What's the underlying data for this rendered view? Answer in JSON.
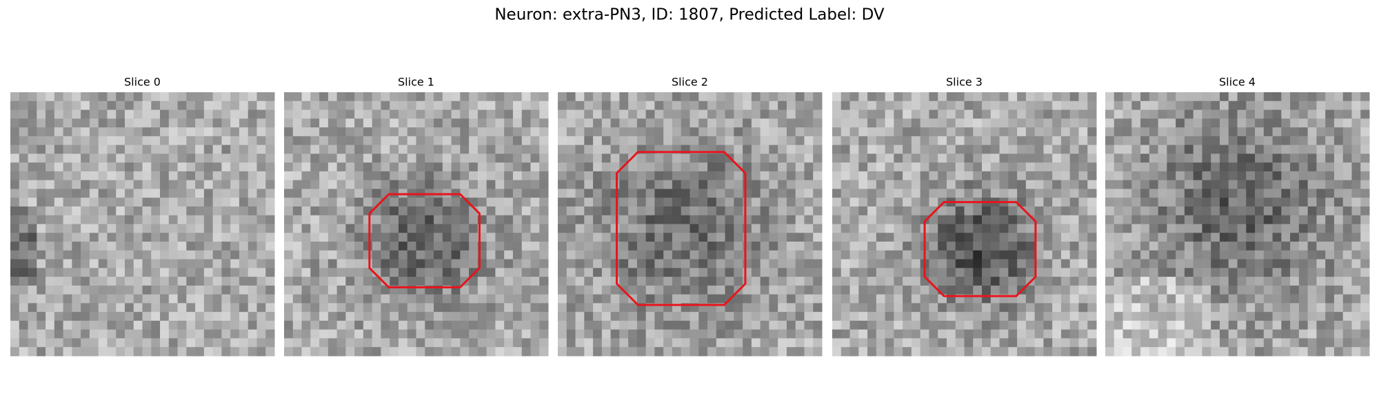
{
  "title": "Neuron: extra-PN3, ID: 1807, Predicted Label: DV",
  "panels": [
    {
      "title": "Slice 0"
    },
    {
      "title": "Slice 1"
    },
    {
      "title": "Slice 2"
    },
    {
      "title": "Slice 3"
    },
    {
      "title": "Slice 4"
    }
  ]
}
